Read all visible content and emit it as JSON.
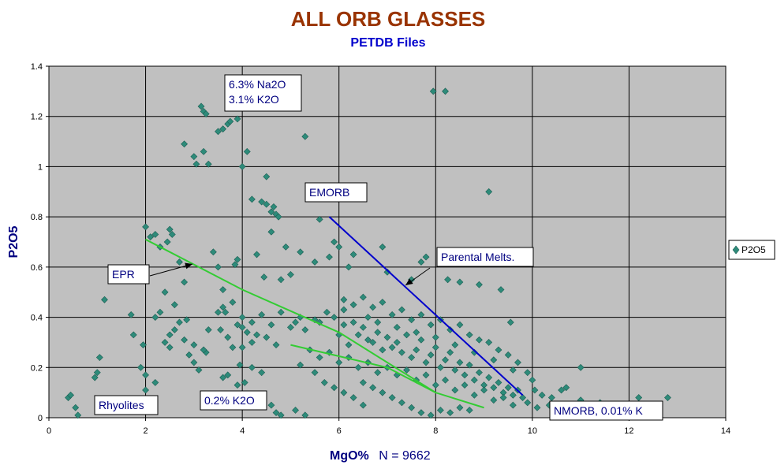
{
  "chart_data": {
    "type": "scatter",
    "title": "ALL ORB GLASSES",
    "subtitle": "PETDB Files",
    "xlabel": "MgO%",
    "xlabel_note": "N = 9662",
    "ylabel": "P2O5",
    "xlim": [
      0,
      14
    ],
    "ylim": [
      0,
      1.4
    ],
    "x_ticks": [
      "0",
      "2",
      "4",
      "6",
      "8",
      "10",
      "12",
      "14"
    ],
    "y_ticks": [
      "0",
      "0.2",
      "0.4",
      "0.6",
      "0.8",
      "1",
      "1.2",
      "1.4"
    ],
    "grid": true,
    "legend_position": "right",
    "series": [
      {
        "name": "P2O5",
        "marker": "diamond",
        "color": "#2e8b7a",
        "points": [
          [
            0.4,
            0.08
          ],
          [
            0.45,
            0.09
          ],
          [
            0.55,
            0.04
          ],
          [
            0.6,
            0.01
          ],
          [
            0.95,
            0.16
          ],
          [
            1.0,
            0.18
          ],
          [
            1.05,
            0.24
          ],
          [
            1.15,
            0.47
          ],
          [
            1.7,
            0.41
          ],
          [
            1.75,
            0.33
          ],
          [
            1.9,
            0.2
          ],
          [
            1.95,
            0.29
          ],
          [
            2.0,
            0.17
          ],
          [
            2.0,
            0.76
          ],
          [
            2.1,
            0.72
          ],
          [
            2.2,
            0.73
          ],
          [
            2.3,
            0.68
          ],
          [
            2.45,
            0.7
          ],
          [
            2.5,
            0.75
          ],
          [
            2.55,
            0.73
          ],
          [
            2.4,
            0.5
          ],
          [
            2.5,
            0.28
          ],
          [
            2.6,
            0.35
          ],
          [
            2.7,
            0.62
          ],
          [
            2.8,
            0.54
          ],
          [
            2.85,
            0.39
          ],
          [
            2.9,
            0.25
          ],
          [
            3.0,
            0.22
          ],
          [
            3.1,
            0.19
          ],
          [
            2.8,
            1.09
          ],
          [
            3.0,
            1.04
          ],
          [
            3.05,
            1.01
          ],
          [
            3.2,
            1.06
          ],
          [
            3.3,
            1.01
          ],
          [
            3.15,
            1.24
          ],
          [
            3.2,
            1.22
          ],
          [
            3.25,
            1.21
          ],
          [
            3.5,
            1.14
          ],
          [
            3.6,
            1.15
          ],
          [
            3.7,
            1.17
          ],
          [
            3.75,
            1.18
          ],
          [
            3.9,
            1.19
          ],
          [
            4.0,
            1.0
          ],
          [
            4.1,
            1.06
          ],
          [
            3.4,
            0.66
          ],
          [
            3.5,
            0.6
          ],
          [
            3.6,
            0.51
          ],
          [
            3.65,
            0.42
          ],
          [
            3.7,
            0.32
          ],
          [
            3.8,
            0.28
          ],
          [
            3.3,
            0.35
          ],
          [
            3.25,
            0.26
          ],
          [
            3.9,
            0.63
          ],
          [
            3.85,
            0.61
          ],
          [
            4.2,
            0.87
          ],
          [
            4.4,
            0.86
          ],
          [
            4.5,
            0.85
          ],
          [
            4.6,
            0.82
          ],
          [
            4.65,
            0.84
          ],
          [
            4.5,
            0.96
          ],
          [
            4.6,
            0.74
          ],
          [
            4.7,
            0.81
          ],
          [
            4.75,
            0.8
          ],
          [
            4.9,
            0.68
          ],
          [
            4.3,
            0.65
          ],
          [
            4.45,
            0.56
          ],
          [
            4.8,
            0.55
          ],
          [
            5.0,
            0.57
          ],
          [
            5.2,
            0.66
          ],
          [
            5.3,
            1.12
          ],
          [
            5.6,
            0.79
          ],
          [
            5.9,
            0.7
          ],
          [
            6.0,
            0.68
          ],
          [
            5.5,
            0.62
          ],
          [
            5.8,
            0.64
          ],
          [
            6.2,
            0.6
          ],
          [
            6.1,
            0.43
          ],
          [
            3.55,
            0.35
          ],
          [
            3.9,
            0.37
          ],
          [
            4.0,
            0.36
          ],
          [
            4.1,
            0.34
          ],
          [
            4.3,
            0.33
          ],
          [
            4.0,
            0.28
          ],
          [
            4.2,
            0.3
          ],
          [
            4.5,
            0.32
          ],
          [
            4.7,
            0.29
          ],
          [
            4.4,
            0.18
          ],
          [
            4.2,
            0.2
          ],
          [
            3.9,
            0.13
          ],
          [
            3.8,
            0.09
          ],
          [
            4.05,
            0.14
          ],
          [
            4.15,
            0.05
          ],
          [
            4.6,
            0.05
          ],
          [
            4.7,
            0.02
          ],
          [
            4.8,
            0.01
          ],
          [
            5.1,
            0.03
          ],
          [
            5.3,
            0.01
          ],
          [
            3.6,
            0.16
          ],
          [
            3.7,
            0.17
          ],
          [
            3.95,
            0.21
          ],
          [
            6.3,
            0.65
          ],
          [
            6.9,
            0.68
          ],
          [
            7.0,
            0.58
          ],
          [
            7.5,
            0.55
          ],
          [
            7.7,
            0.62
          ],
          [
            7.8,
            0.64
          ],
          [
            7.95,
            1.3
          ],
          [
            8.2,
            1.3
          ],
          [
            8.25,
            0.55
          ],
          [
            8.5,
            0.54
          ],
          [
            8.9,
            0.53
          ],
          [
            9.1,
            0.9
          ],
          [
            9.35,
            0.51
          ],
          [
            9.55,
            0.38
          ],
          [
            10.7,
            0.12
          ],
          [
            11.0,
            0.2
          ],
          [
            11.0,
            0.07
          ],
          [
            11.4,
            0.06
          ],
          [
            12.2,
            0.08
          ],
          [
            12.8,
            0.08
          ],
          [
            10.05,
            0.11
          ],
          [
            10.2,
            0.09
          ],
          [
            10.4,
            0.08
          ],
          [
            10.6,
            0.11
          ],
          [
            10.35,
            0.05
          ],
          [
            10.1,
            0.04
          ],
          [
            5.0,
            0.36
          ],
          [
            5.1,
            0.38
          ],
          [
            5.2,
            0.4
          ],
          [
            5.3,
            0.35
          ],
          [
            5.5,
            0.39
          ],
          [
            5.6,
            0.38
          ],
          [
            5.75,
            0.42
          ],
          [
            5.9,
            0.4
          ],
          [
            6.0,
            0.33
          ],
          [
            6.1,
            0.37
          ],
          [
            6.2,
            0.29
          ],
          [
            6.3,
            0.38
          ],
          [
            6.4,
            0.33
          ],
          [
            6.5,
            0.36
          ],
          [
            6.6,
            0.31
          ],
          [
            6.7,
            0.3
          ],
          [
            6.8,
            0.34
          ],
          [
            6.9,
            0.27
          ],
          [
            7.0,
            0.32
          ],
          [
            7.1,
            0.28
          ],
          [
            7.2,
            0.3
          ],
          [
            7.3,
            0.26
          ],
          [
            7.4,
            0.33
          ],
          [
            7.5,
            0.24
          ],
          [
            7.6,
            0.27
          ],
          [
            7.7,
            0.31
          ],
          [
            7.8,
            0.22
          ],
          [
            7.9,
            0.25
          ],
          [
            8.0,
            0.28
          ],
          [
            8.1,
            0.2
          ],
          [
            8.2,
            0.23
          ],
          [
            8.3,
            0.26
          ],
          [
            8.4,
            0.19
          ],
          [
            8.5,
            0.22
          ],
          [
            8.6,
            0.17
          ],
          [
            8.7,
            0.21
          ],
          [
            8.8,
            0.15
          ],
          [
            8.9,
            0.18
          ],
          [
            9.0,
            0.13
          ],
          [
            9.1,
            0.16
          ],
          [
            9.2,
            0.12
          ],
          [
            9.3,
            0.14
          ],
          [
            9.4,
            0.1
          ],
          [
            9.5,
            0.12
          ],
          [
            9.6,
            0.09
          ],
          [
            9.7,
            0.11
          ],
          [
            9.8,
            0.08
          ],
          [
            9.9,
            0.06
          ],
          [
            5.4,
            0.27
          ],
          [
            5.6,
            0.24
          ],
          [
            5.8,
            0.26
          ],
          [
            6.0,
            0.22
          ],
          [
            6.2,
            0.24
          ],
          [
            6.4,
            0.2
          ],
          [
            6.6,
            0.22
          ],
          [
            6.8,
            0.18
          ],
          [
            7.0,
            0.2
          ],
          [
            7.2,
            0.17
          ],
          [
            7.4,
            0.19
          ],
          [
            7.6,
            0.15
          ],
          [
            7.8,
            0.17
          ],
          [
            8.0,
            0.13
          ],
          [
            8.2,
            0.15
          ],
          [
            8.4,
            0.11
          ],
          [
            8.6,
            0.13
          ],
          [
            8.8,
            0.09
          ],
          [
            9.0,
            0.11
          ],
          [
            9.2,
            0.07
          ],
          [
            9.4,
            0.08
          ],
          [
            9.6,
            0.05
          ],
          [
            6.5,
            0.14
          ],
          [
            6.7,
            0.12
          ],
          [
            6.9,
            0.1
          ],
          [
            7.1,
            0.08
          ],
          [
            7.3,
            0.06
          ],
          [
            7.5,
            0.04
          ],
          [
            7.7,
            0.02
          ],
          [
            7.9,
            0.01
          ],
          [
            8.1,
            0.03
          ],
          [
            8.3,
            0.02
          ],
          [
            8.5,
            0.04
          ],
          [
            8.7,
            0.03
          ],
          [
            6.1,
            0.47
          ],
          [
            6.3,
            0.45
          ],
          [
            6.5,
            0.48
          ],
          [
            6.7,
            0.44
          ],
          [
            6.9,
            0.46
          ],
          [
            7.1,
            0.41
          ],
          [
            7.3,
            0.43
          ],
          [
            7.5,
            0.39
          ],
          [
            7.7,
            0.41
          ],
          [
            7.9,
            0.37
          ],
          [
            8.1,
            0.39
          ],
          [
            8.3,
            0.35
          ],
          [
            8.5,
            0.37
          ],
          [
            8.7,
            0.33
          ],
          [
            8.9,
            0.31
          ],
          [
            9.1,
            0.3
          ],
          [
            9.3,
            0.27
          ],
          [
            9.5,
            0.25
          ],
          [
            9.7,
            0.22
          ],
          [
            9.9,
            0.18
          ],
          [
            10.0,
            0.15
          ],
          [
            6.6,
            0.4
          ],
          [
            6.8,
            0.38
          ],
          [
            7.2,
            0.36
          ],
          [
            7.6,
            0.34
          ],
          [
            8.0,
            0.32
          ],
          [
            8.4,
            0.29
          ],
          [
            8.8,
            0.26
          ],
          [
            9.2,
            0.23
          ],
          [
            9.6,
            0.19
          ],
          [
            5.2,
            0.21
          ],
          [
            5.5,
            0.18
          ],
          [
            5.7,
            0.14
          ],
          [
            5.9,
            0.12
          ],
          [
            6.1,
            0.1
          ],
          [
            6.3,
            0.08
          ],
          [
            6.5,
            0.05
          ],
          [
            3.5,
            0.42
          ],
          [
            3.6,
            0.44
          ],
          [
            3.8,
            0.46
          ],
          [
            4.0,
            0.4
          ],
          [
            4.2,
            0.38
          ],
          [
            4.4,
            0.41
          ],
          [
            4.6,
            0.37
          ],
          [
            4.8,
            0.42
          ],
          [
            2.3,
            0.42
          ],
          [
            2.2,
            0.4
          ],
          [
            2.6,
            0.45
          ],
          [
            2.7,
            0.38
          ],
          [
            2.8,
            0.31
          ],
          [
            3.0,
            0.29
          ],
          [
            3.2,
            0.27
          ],
          [
            2.4,
            0.3
          ],
          [
            2.5,
            0.33
          ],
          [
            2.2,
            0.14
          ],
          [
            2.0,
            0.11
          ]
        ]
      }
    ],
    "trend_lines": [
      {
        "label": "EPR",
        "color": "#33cc33",
        "points": [
          [
            2.0,
            0.71
          ],
          [
            4.0,
            0.51
          ],
          [
            6.0,
            0.34
          ],
          [
            8.0,
            0.1
          ],
          [
            9.0,
            0.04
          ]
        ]
      },
      {
        "label": "0.2% K2O",
        "color": "#33cc33",
        "points": [
          [
            5.0,
            0.29
          ],
          [
            7.0,
            0.2
          ],
          [
            8.0,
            0.1
          ]
        ]
      },
      {
        "label": "EMORB",
        "color": "#0000cc",
        "points": [
          [
            5.8,
            0.8
          ],
          [
            9.8,
            0.09
          ]
        ]
      }
    ],
    "annotations": [
      {
        "key": "na2o",
        "lines": [
          "6.3% Na2O",
          "3.1% K2O"
        ]
      },
      {
        "key": "emorb",
        "lines": [
          "EMORB"
        ]
      },
      {
        "key": "parental",
        "lines": [
          "Parental Melts."
        ]
      },
      {
        "key": "epr",
        "lines": [
          "EPR"
        ]
      },
      {
        "key": "rhyolites",
        "lines": [
          "Rhyolites"
        ]
      },
      {
        "key": "k2o",
        "lines": [
          "0.2% K2O"
        ]
      },
      {
        "key": "nmorb",
        "lines": [
          "NMORB, 0.01% K"
        ]
      }
    ],
    "legend": [
      {
        "label": "P2O5",
        "marker": "diamond",
        "color": "#2e8b7a"
      }
    ]
  },
  "colors": {
    "plot_bg": "#c0c0c0",
    "title": "#993300",
    "subtitle": "#0000cc",
    "axis_label": "#000080",
    "marker_fill": "#2e8b7a",
    "marker_stroke": "#1b5e52",
    "gridline": "#000000"
  }
}
